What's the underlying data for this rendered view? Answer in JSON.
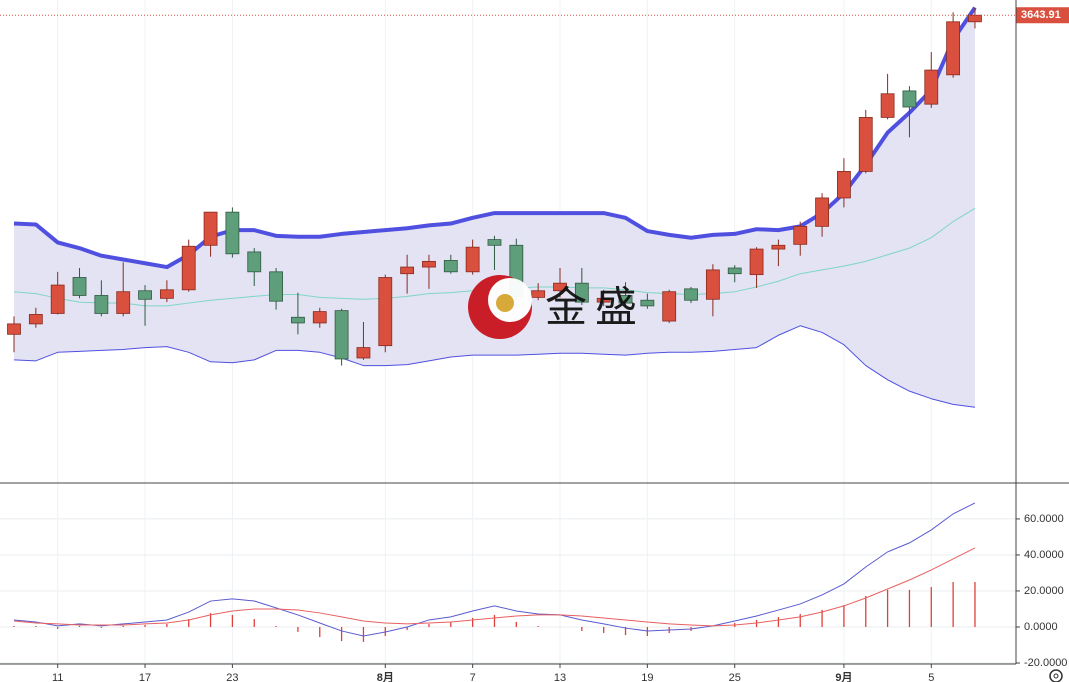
{
  "watermark": "金盛",
  "chart_data": [
    {
      "type": "candlestick",
      "ylim": [
        3150,
        3660
      ],
      "up_color": "#d9503f",
      "down_color": "#5f9e7a",
      "up_border": "#8a2a1e",
      "down_border": "#2f5a42",
      "band_fill": "#e3e3f3",
      "open": [
        3307,
        3318,
        3329,
        3367,
        3348,
        3329,
        3353,
        3345,
        3354,
        3401,
        3436,
        3394,
        3373,
        3325,
        3319,
        3332,
        3282,
        3295,
        3371,
        3378,
        3385,
        3373,
        3407,
        3401,
        3346,
        3353,
        3361,
        3341,
        3348,
        3343,
        3321,
        3355,
        3344,
        3377,
        3370,
        3397,
        3402,
        3421,
        3451,
        3479,
        3536,
        3564,
        3550,
        3581,
        3637
      ],
      "high": [
        3326,
        3335,
        3373,
        3377,
        3364,
        3383,
        3359,
        3364,
        3407,
        3436,
        3441,
        3398,
        3377,
        3351,
        3335,
        3334,
        3320,
        3370,
        3391,
        3391,
        3391,
        3407,
        3411,
        3408,
        3361,
        3377,
        3377,
        3354,
        3362,
        3350,
        3354,
        3357,
        3381,
        3380,
        3399,
        3407,
        3426,
        3456,
        3493,
        3544,
        3582,
        3569,
        3605,
        3647,
        3652
      ],
      "low": [
        3288,
        3314,
        3328,
        3345,
        3326,
        3326,
        3316,
        3341,
        3352,
        3389,
        3388,
        3358,
        3333,
        3307,
        3314,
        3274,
        3280,
        3288,
        3350,
        3355,
        3371,
        3370,
        3375,
        3343,
        3343,
        3346,
        3338,
        3337,
        3337,
        3334,
        3319,
        3340,
        3326,
        3362,
        3356,
        3379,
        3390,
        3410,
        3441,
        3477,
        3534,
        3515,
        3546,
        3578,
        3630
      ],
      "close": [
        3318,
        3328,
        3359,
        3348,
        3329,
        3352,
        3344,
        3354,
        3400,
        3436,
        3392,
        3373,
        3342,
        3319,
        3331,
        3281,
        3293,
        3367,
        3378,
        3384,
        3373,
        3399,
        3401,
        3347,
        3353,
        3361,
        3341,
        3345,
        3340,
        3337,
        3352,
        3343,
        3375,
        3371,
        3397,
        3401,
        3421,
        3451,
        3479,
        3536,
        3561,
        3547,
        3586,
        3637,
        3643.91
      ],
      "lines": [
        {
          "color": "#5050e0",
          "width": 4,
          "values": [
            3424,
            3423,
            3404,
            3398,
            3390,
            3386,
            3382,
            3378,
            3391,
            3410,
            3417,
            3417,
            3411,
            3410,
            3410,
            3413,
            3415,
            3417,
            3419,
            3422,
            3424,
            3430,
            3435,
            3435,
            3435,
            3435,
            3435,
            3435,
            3430,
            3416,
            3412,
            3409,
            3412,
            3413,
            3418,
            3417,
            3421,
            3435,
            3456,
            3486,
            3520,
            3541,
            3565,
            3618,
            3652
          ]
        },
        {
          "color": "#7fd6c4",
          "width": 1,
          "values": [
            3352,
            3350,
            3345,
            3341,
            3340,
            3340,
            3337,
            3337,
            3340,
            3343,
            3345,
            3347,
            3349,
            3349,
            3346,
            3345,
            3344,
            3345,
            3347,
            3350,
            3351,
            3353,
            3355,
            3356,
            3357,
            3357,
            3356,
            3356,
            3354,
            3351,
            3350,
            3349,
            3350,
            3352,
            3357,
            3363,
            3371,
            3375,
            3379,
            3384,
            3391,
            3398,
            3409,
            3426,
            3440
          ]
        },
        {
          "color": "#5050e0",
          "width": 1,
          "values": [
            3280,
            3279,
            3288,
            3289,
            3290,
            3291,
            3293,
            3294,
            3288,
            3278,
            3277,
            3280,
            3290,
            3290,
            3288,
            3282,
            3274,
            3274,
            3275,
            3279,
            3283,
            3285,
            3285,
            3285,
            3286,
            3287,
            3287,
            3286,
            3285,
            3287,
            3288,
            3288,
            3289,
            3291,
            3293,
            3306,
            3316,
            3309,
            3296,
            3274,
            3259,
            3247,
            3239,
            3233,
            3230
          ]
        }
      ],
      "last_color": "#d9503f"
    },
    {
      "type": "macd",
      "categories": [
        null,
        null,
        "11",
        null,
        null,
        null,
        "17",
        null,
        null,
        null,
        "23",
        null,
        null,
        null,
        null,
        null,
        null,
        "8月",
        null,
        null,
        null,
        "7",
        null,
        null,
        null,
        "13",
        null,
        null,
        null,
        "19",
        null,
        null,
        null,
        "25",
        null,
        null,
        null,
        null,
        "9月",
        null,
        null,
        null,
        "5",
        null,
        null
      ],
      "ylim": [
        -20,
        79.4
      ],
      "yticks": [
        {
          "value": 60,
          "label": "60.0000"
        },
        {
          "value": 40,
          "label": "40.0000"
        },
        {
          "value": 20,
          "label": "20.0000"
        },
        {
          "value": 0,
          "label": "0.0000"
        },
        {
          "value": -20,
          "label": "-20.0000"
        }
      ],
      "grid": true,
      "histogram": {
        "color": "#e0403a",
        "values": [
          0.6,
          0.6,
          -1.1,
          0.6,
          -0.5,
          0.6,
          1.1,
          1.7,
          4.4,
          7.7,
          6.7,
          4.4,
          0.6,
          -2.7,
          -5.6,
          -7.8,
          -8.3,
          -5.0,
          -1.7,
          1.7,
          2.8,
          5.0,
          6.7,
          2.8,
          0.5,
          0,
          -2.2,
          -3.3,
          -4.5,
          -5.0,
          -3.4,
          -2.2,
          0,
          2.2,
          3.9,
          5.5,
          7.2,
          9.5,
          12.2,
          17.2,
          20.6,
          20.6,
          22.2,
          25.0,
          25.0
        ]
      },
      "series": [
        {
          "color": "#5a5ad0",
          "values": [
            3.9,
            2.8,
            0.6,
            1.7,
            0.6,
            1.7,
            2.8,
            3.9,
            8.3,
            14.4,
            15.6,
            14.4,
            10.6,
            6.7,
            2.2,
            -2.2,
            -5.0,
            -2.8,
            0,
            3.9,
            5.6,
            8.9,
            11.7,
            8.9,
            7.2,
            6.7,
            3.9,
            1.7,
            -0.6,
            -2.2,
            -1.7,
            -1.1,
            0.6,
            3.3,
            6.1,
            9.4,
            12.8,
            17.8,
            23.9,
            33.3,
            41.7,
            46.7,
            53.9,
            62.8,
            68.9
          ]
        },
        {
          "color": "#e86060",
          "values": [
            3.3,
            2.2,
            1.7,
            1.1,
            1.1,
            1.1,
            1.7,
            2.2,
            3.9,
            6.7,
            8.9,
            10.0,
            10.0,
            9.4,
            7.8,
            5.6,
            3.3,
            2.2,
            1.7,
            2.2,
            2.8,
            3.9,
            5.0,
            6.1,
            6.7,
            6.7,
            6.1,
            5.0,
            3.9,
            2.8,
            1.7,
            1.1,
            0.6,
            1.1,
            2.2,
            3.9,
            5.6,
            8.3,
            11.7,
            16.1,
            21.1,
            26.1,
            31.7,
            37.8,
            43.9
          ]
        }
      ]
    }
  ]
}
